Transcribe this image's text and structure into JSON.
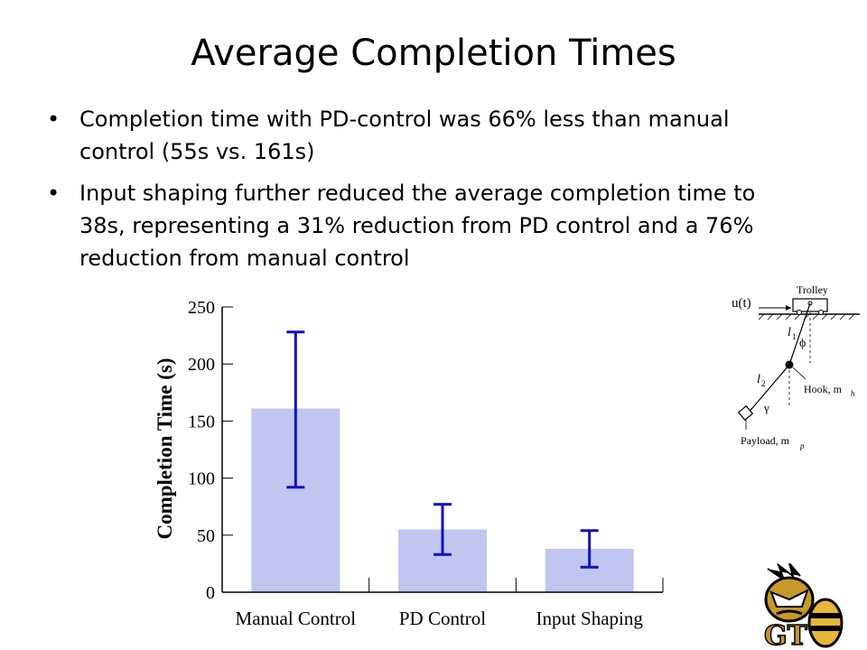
{
  "slide": {
    "title": "Average Completion Times",
    "bullets": [
      "Completion time with PD-control was 66% less than manual control (55s vs. 161s)",
      "Input shaping further reduced the average completion time to 38s, representing a 31% reduction from PD control and a 76% reduction from manual control"
    ]
  },
  "chart_data": {
    "type": "bar",
    "categories": [
      "Manual Control",
      "PD Control",
      "Input Shaping"
    ],
    "values": [
      161,
      55,
      38
    ],
    "error_low": [
      92,
      33,
      22
    ],
    "error_high": [
      228,
      77,
      54
    ],
    "ylabel": "Completion Time (s)",
    "ylim": [
      0,
      250
    ],
    "yticks": [
      0,
      50,
      100,
      150,
      200,
      250
    ],
    "bar_color": "#c3c5f1",
    "error_color": "#1010c8",
    "grid": false
  },
  "diagram": {
    "input_label": "u(t)",
    "trolley_label": "Trolley",
    "l1_label": "l",
    "l1_sub": "1",
    "phi_label": "ϕ",
    "l2_label": "l",
    "l2_sub": "2",
    "gamma_label": "γ",
    "hook_label": "Hook, m",
    "hook_sub": "h",
    "payload_label": "Payload, m",
    "payload_sub": "p"
  },
  "logo": {
    "text": "GT"
  }
}
